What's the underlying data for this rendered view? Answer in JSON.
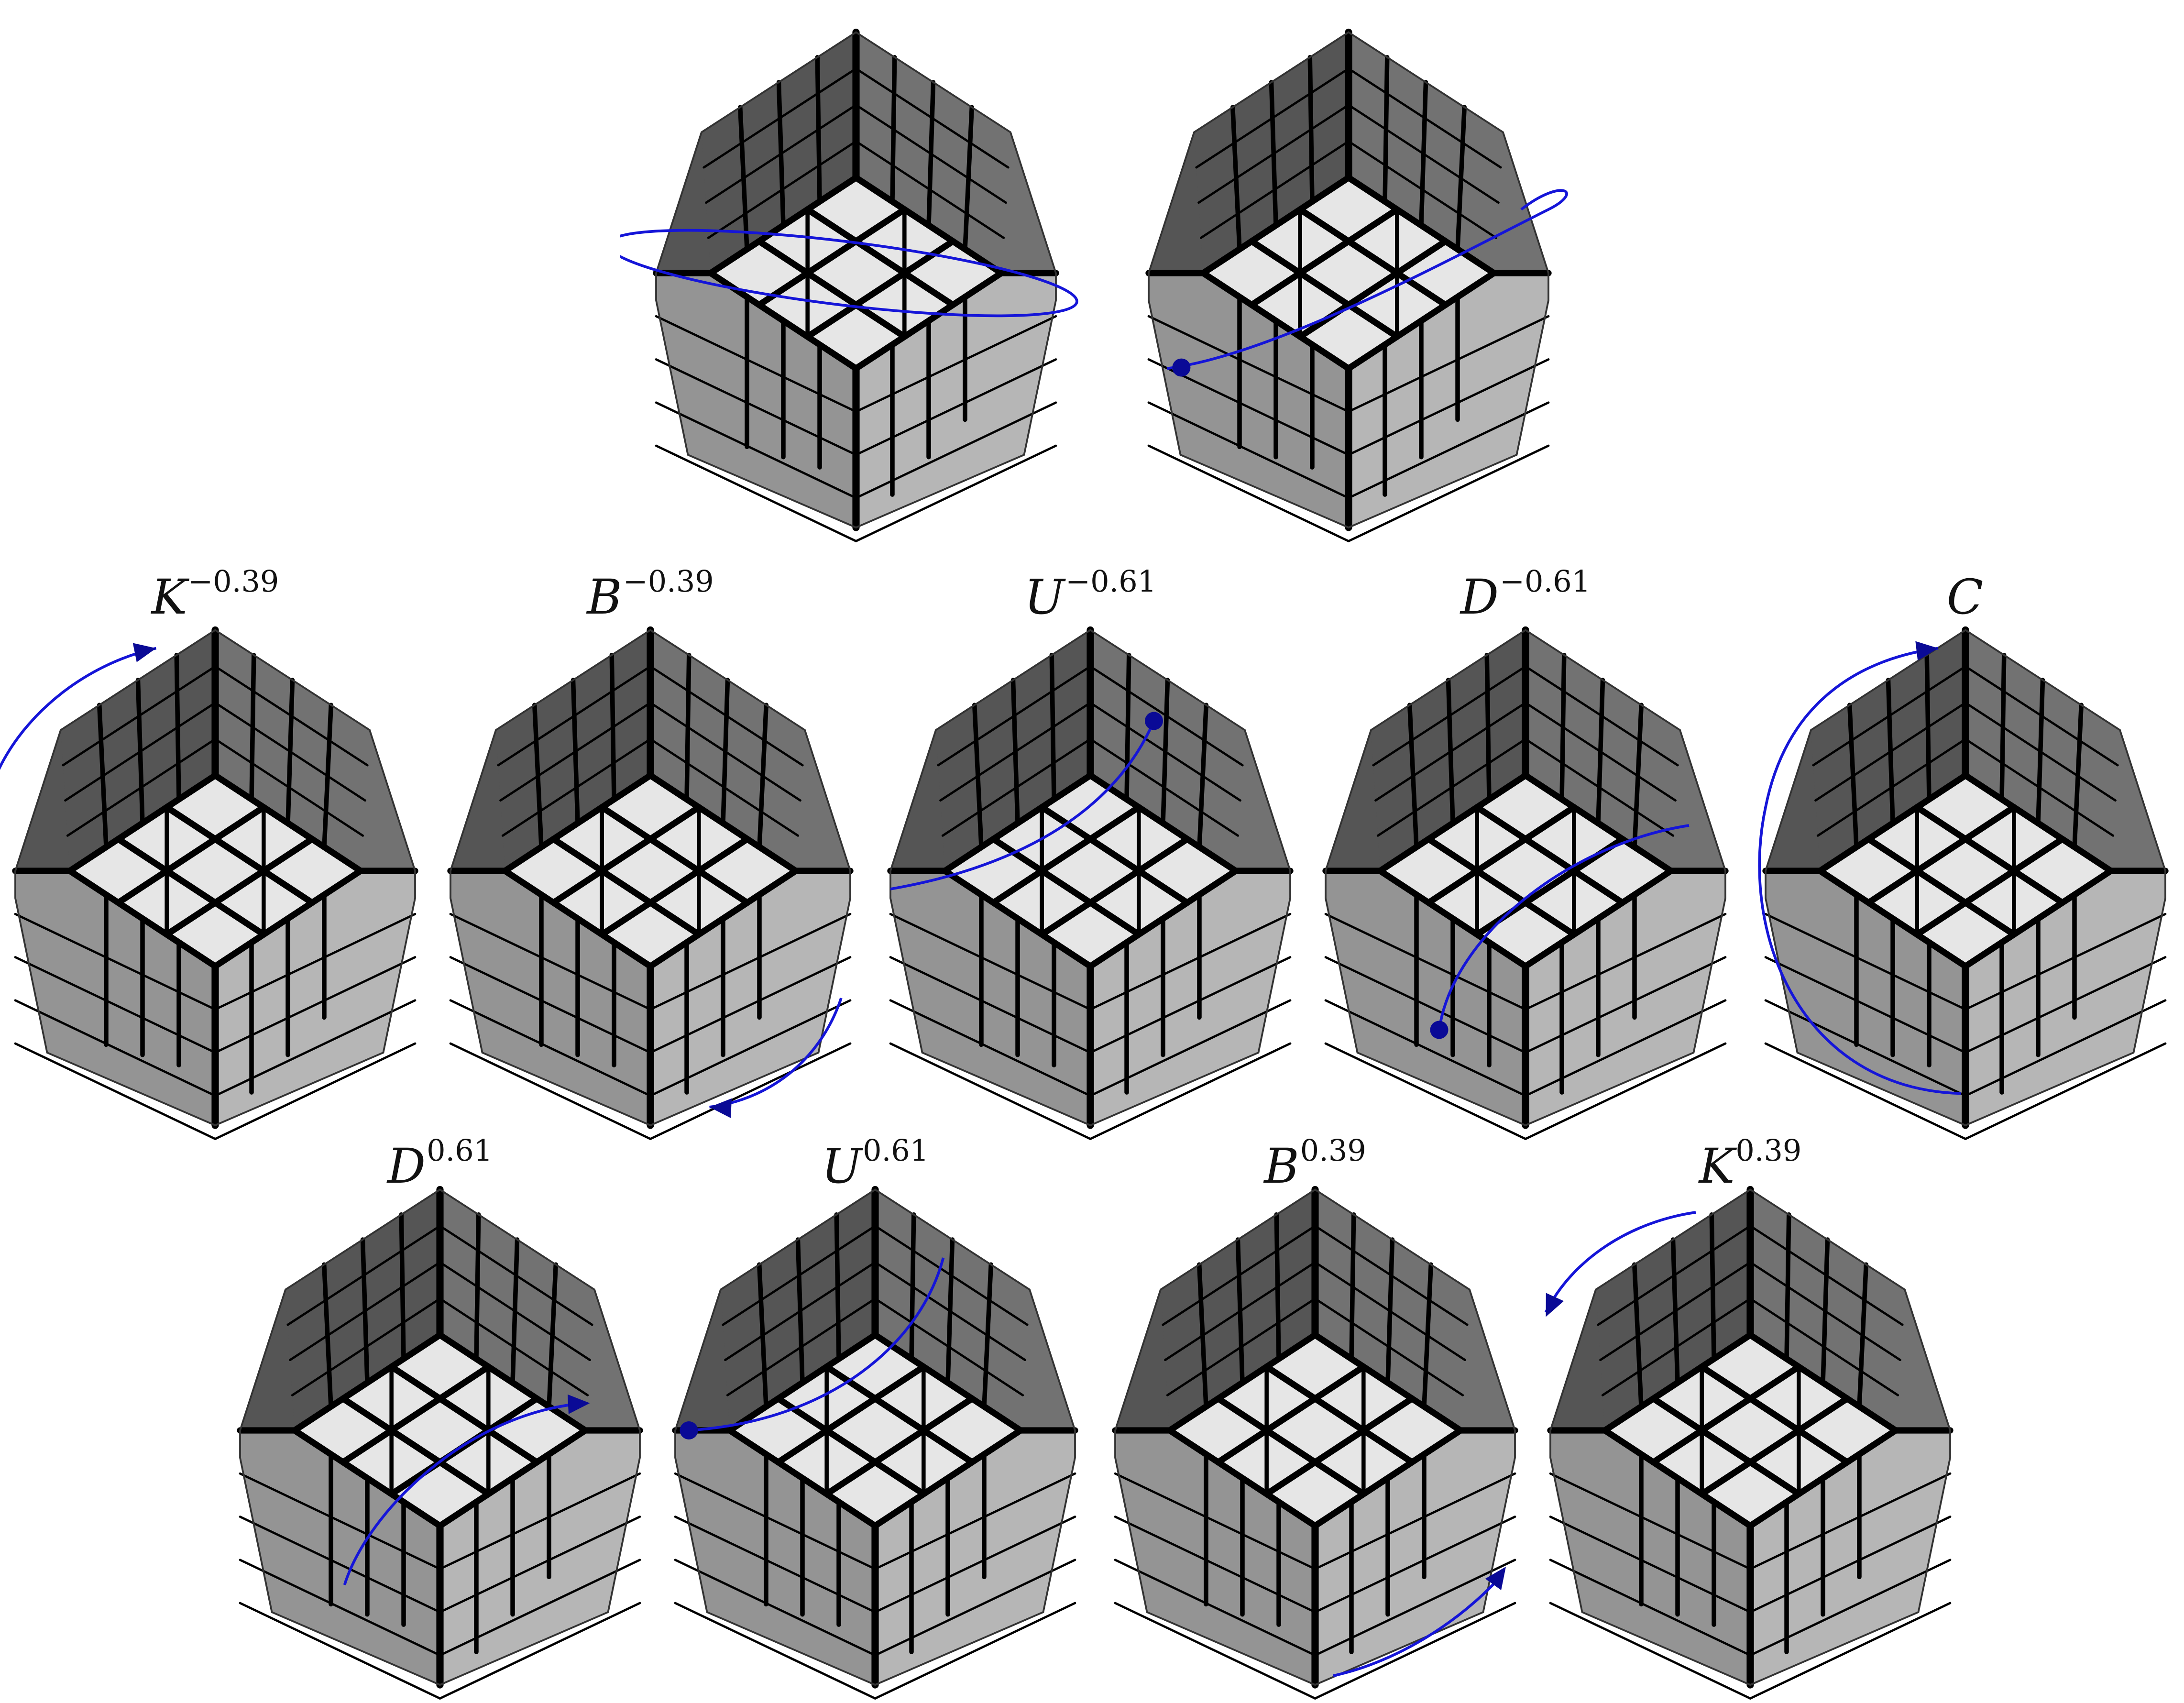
{
  "colors": {
    "top_face": "#e6e6e6",
    "upper_left": "#555555",
    "upper_right": "#727272",
    "lower_left": "#949494",
    "lower_right": "#b6b6b6",
    "edge_stroke": "#000000",
    "arrow": "#1515d8",
    "arrow_head": "#0a0a96"
  },
  "top_row": [
    {
      "id": "initial-state",
      "arrow": "ellipse-band"
    },
    {
      "id": "combined-move",
      "arrow": "diagonal-sweep"
    }
  ],
  "middle_row": [
    {
      "base": "K",
      "exp": "−0.39",
      "arrow": "arc-top-left"
    },
    {
      "base": "B",
      "exp": "−0.39",
      "arrow": "arc-bottom-right"
    },
    {
      "base": "U",
      "exp": "−0.61",
      "arrow": "diagonal-up"
    },
    {
      "base": "D",
      "exp": "−0.61",
      "arrow": "diagonal-down"
    },
    {
      "base": "C",
      "exp": "",
      "arrow": "big-left-arc"
    }
  ],
  "bottom_row": [
    {
      "base": "D",
      "exp": "0.61",
      "arrow": "diagonal-up-right"
    },
    {
      "base": "U",
      "exp": "0.61",
      "arrow": "diagonal-down-left"
    },
    {
      "base": "B",
      "exp": "0.39",
      "arrow": "arc-bottom-up"
    },
    {
      "base": "K",
      "exp": "0.39",
      "arrow": "arc-top-right-down"
    }
  ]
}
